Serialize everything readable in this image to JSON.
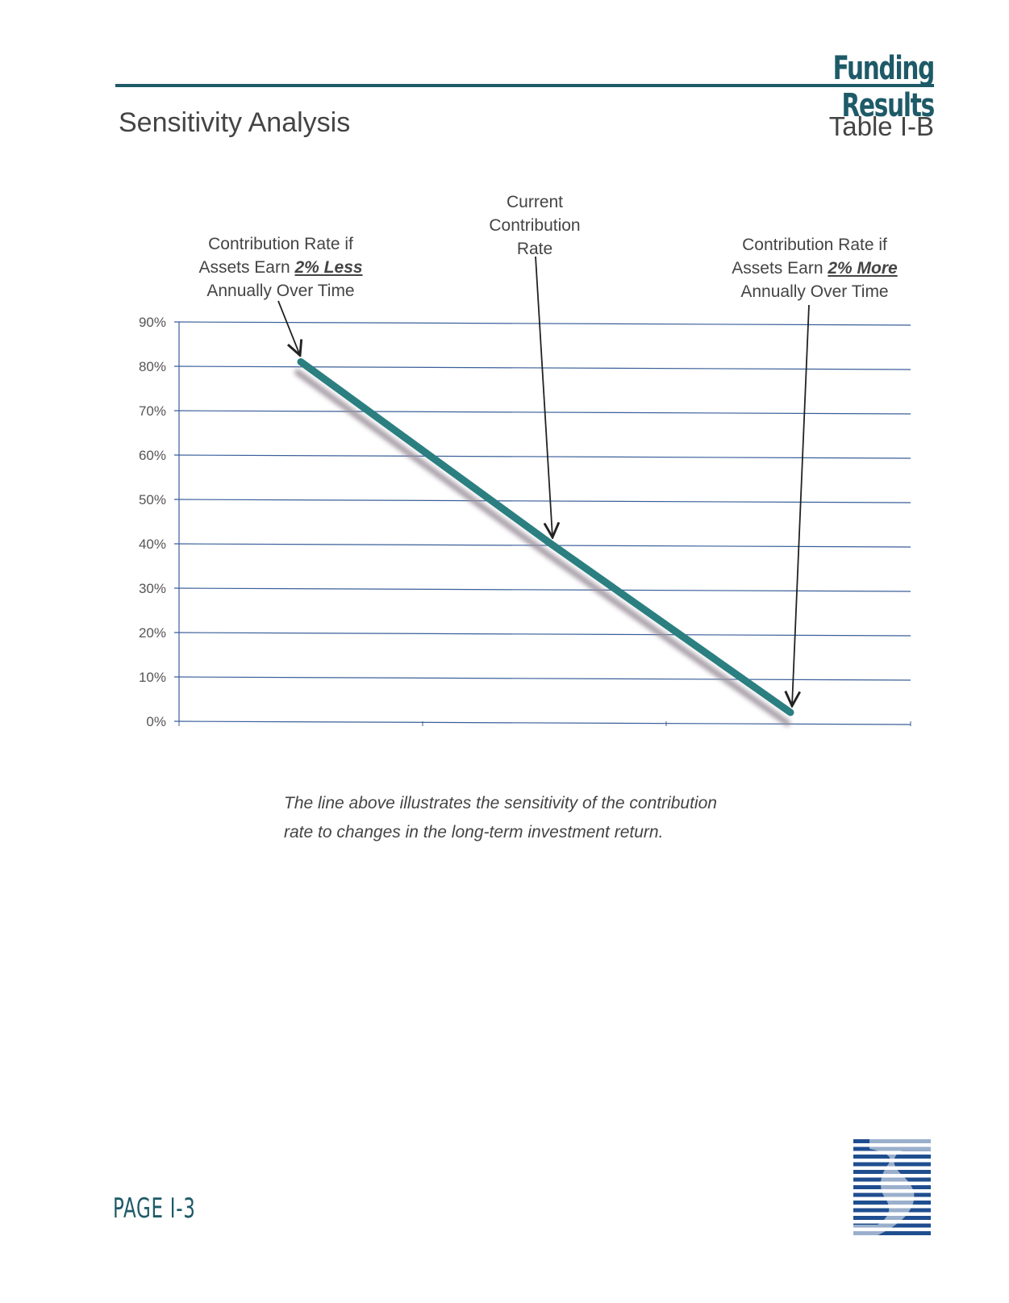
{
  "header": {
    "section": "Funding Results",
    "title": "Sensitivity Analysis",
    "table_id": "Table I-B"
  },
  "annotations": {
    "less": {
      "line1": "Contribution Rate if",
      "line2_prefix": "Assets Earn ",
      "line2_emph": "2% Less",
      "line3": "Annually Over Time"
    },
    "current": {
      "line1": "Current",
      "line2": "Contribution",
      "line3": "Rate"
    },
    "more": {
      "line1": "Contribution Rate if",
      "line2_prefix": "Assets Earn ",
      "line2_emph": "2% More",
      "line3": "Annually Over Time"
    }
  },
  "caption": {
    "line1": "The line above illustrates the sensitivity of the contribution",
    "line2": "rate to changes in the long-term investment return."
  },
  "footer": {
    "page": "PAGE I-3"
  },
  "colors": {
    "brand": "#1e5a68",
    "line": "#2b7f80",
    "grid": "#3a5f9a",
    "shadow": "#9a8f9a",
    "logo": "#1f4e8f"
  },
  "chart_data": {
    "type": "line",
    "title": "",
    "xlabel": "",
    "ylabel": "",
    "ylim": [
      0,
      90
    ],
    "y_ticks": [
      "0%",
      "10%",
      "20%",
      "30%",
      "40%",
      "50%",
      "60%",
      "70%",
      "80%",
      "90%"
    ],
    "x": [
      "2% Less",
      "Current",
      "2% More"
    ],
    "series": [
      {
        "values": [
          81,
          40,
          2
        ]
      }
    ],
    "grid": true,
    "legend": "none"
  }
}
